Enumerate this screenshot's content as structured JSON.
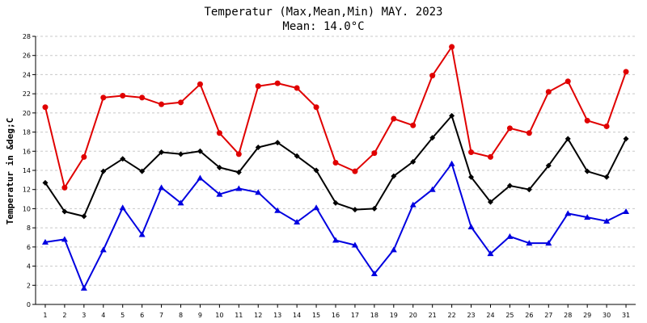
{
  "chart_data": {
    "type": "line",
    "title": "Temperatur (Max,Mean,Min) MAY. 2023",
    "subtitle": "Mean: 14.0°C",
    "xlabel": "",
    "ylabel": "Temperatur in &deg;C",
    "x": [
      1,
      2,
      3,
      4,
      5,
      6,
      7,
      8,
      9,
      10,
      11,
      12,
      13,
      14,
      15,
      16,
      17,
      18,
      19,
      20,
      21,
      22,
      23,
      24,
      25,
      26,
      27,
      28,
      29,
      30,
      31
    ],
    "xlim": [
      0.5,
      31.5
    ],
    "ylim": [
      0,
      28
    ],
    "yticks": [
      0,
      2,
      4,
      6,
      8,
      10,
      12,
      14,
      16,
      18,
      20,
      22,
      24,
      26,
      28
    ],
    "grid": true,
    "legend": "none",
    "series": [
      {
        "color": "#e00000",
        "marker": "circle",
        "values": [
          20.6,
          12.2,
          15.4,
          21.6,
          21.8,
          21.6,
          20.9,
          21.1,
          23.0,
          17.9,
          15.7,
          22.8,
          23.1,
          22.6,
          20.6,
          14.8,
          13.9,
          15.8,
          19.4,
          18.7,
          23.9,
          26.9,
          15.9,
          15.4,
          18.4,
          17.9,
          22.2,
          23.3,
          19.2,
          18.6,
          24.3
        ]
      },
      {
        "color": "#000000",
        "marker": "diamond",
        "values": [
          12.7,
          9.7,
          9.2,
          13.9,
          15.2,
          13.9,
          15.9,
          15.7,
          16.0,
          14.3,
          13.8,
          16.4,
          16.9,
          15.5,
          14.0,
          10.6,
          9.9,
          10.0,
          13.4,
          14.9,
          17.4,
          19.7,
          13.3,
          10.7,
          12.4,
          12.0,
          14.5,
          17.3,
          13.9,
          13.3,
          17.3
        ]
      },
      {
        "color": "#0000e0",
        "marker": "triangle",
        "values": [
          6.5,
          6.8,
          1.7,
          5.7,
          10.1,
          7.3,
          12.2,
          10.6,
          13.2,
          11.5,
          12.1,
          11.7,
          9.8,
          8.6,
          10.1,
          6.7,
          6.2,
          3.2,
          5.7,
          10.4,
          12.0,
          14.7,
          8.1,
          5.3,
          7.1,
          6.4,
          6.4,
          9.5,
          9.1,
          8.7,
          9.7
        ]
      }
    ]
  }
}
